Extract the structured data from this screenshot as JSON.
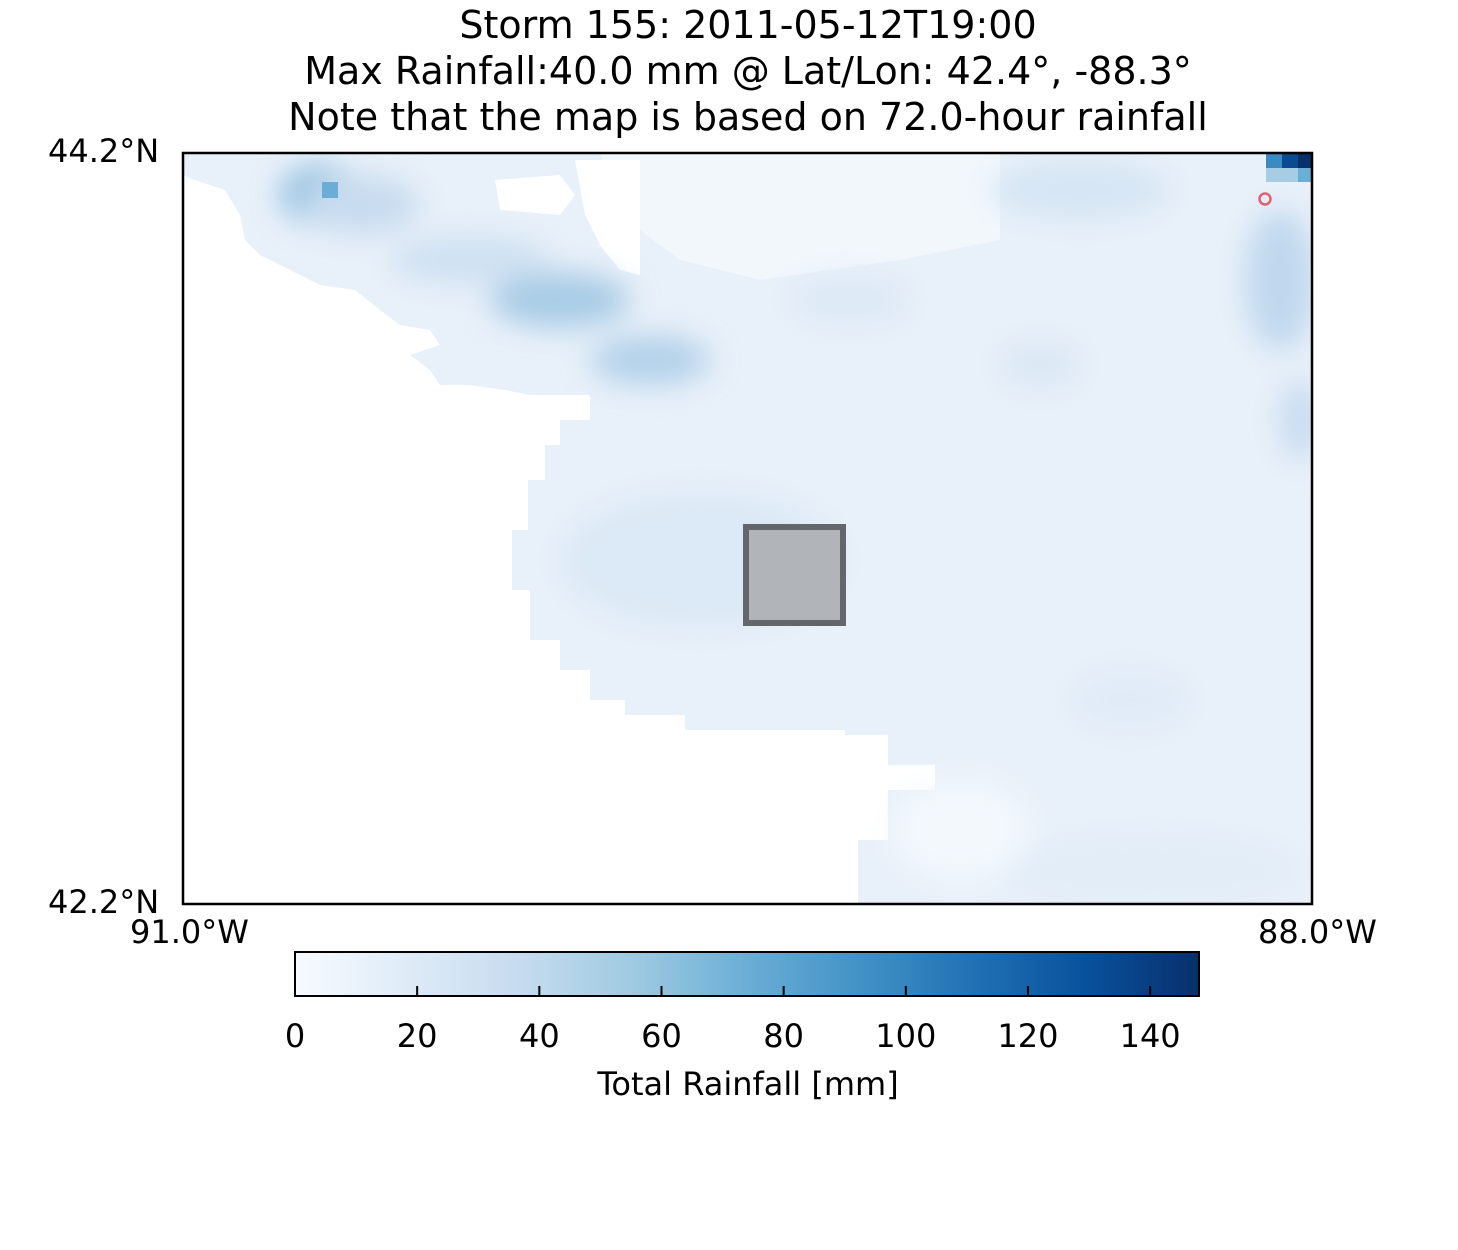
{
  "title": {
    "line1": "Storm 155: 2011-05-12T19:00",
    "line2": "Max Rainfall:40.0 mm @ Lat/Lon:  42.4°, -88.3°",
    "line3": "Note that the map is based on 72.0-hour rainfall"
  },
  "map": {
    "lat_top_label": "44.2°N",
    "lat_bottom_label": "42.2°N",
    "lon_left_label": "91.0°W",
    "lon_right_label": "88.0°W",
    "lat_range": [
      42.2,
      44.2
    ],
    "lon_range": [
      -91.0,
      -88.0
    ],
    "max_rainfall_location": {
      "lat": 42.4,
      "lon": -88.3,
      "marker_color": "#e06070"
    },
    "colormap": "Blues"
  },
  "colorbar": {
    "label": "Total Rainfall [mm]",
    "range": [
      0,
      148
    ],
    "ticks": [
      "0",
      "20",
      "40",
      "60",
      "80",
      "100",
      "120",
      "140"
    ],
    "tick_values": [
      0,
      20,
      40,
      60,
      80,
      100,
      120,
      140
    ]
  }
}
